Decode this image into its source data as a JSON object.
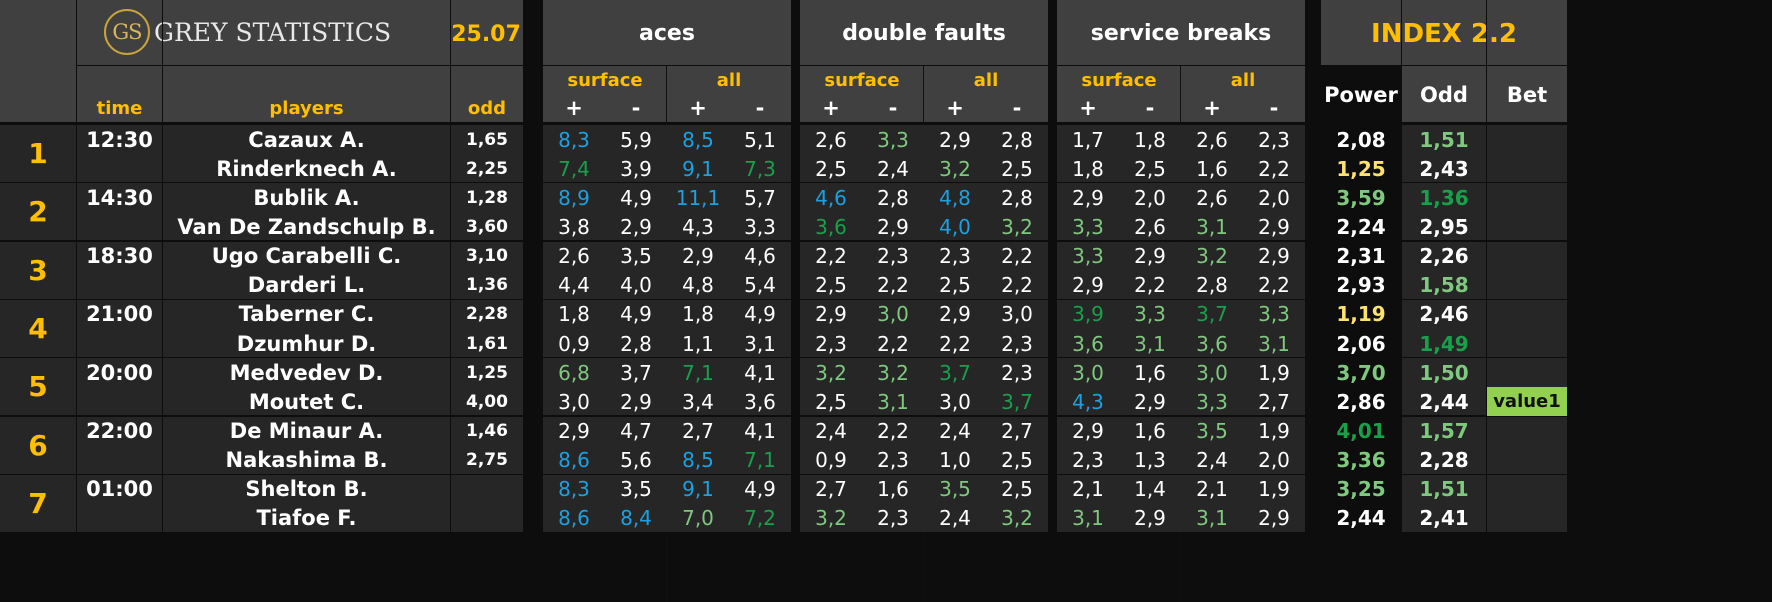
{
  "brand": {
    "logo_text": "GS",
    "name": "GREY STATISTICS",
    "date": "25.07",
    "index": "INDEX 2.2"
  },
  "groups": [
    "aces",
    "double faults",
    "service breaks"
  ],
  "sub_groups": [
    "surface",
    "all"
  ],
  "signs": [
    "+",
    "-"
  ],
  "columns": {
    "time": "time",
    "players": "players",
    "odd": "odd",
    "power": "Power",
    "odd2": "Odd",
    "bet": "Bet"
  },
  "colors": {
    "header_bg": "#404040",
    "row_bg": "#262626",
    "gold": "#ffbf00",
    "cyan": "#1ba1e2",
    "green": "#19a04b",
    "light_green": "#7fc97f",
    "value_badge": "#92d050"
  },
  "matches": [
    {
      "num": "1",
      "time": "12:30",
      "players": [
        {
          "name": "Cazaux A.",
          "odd": "1,65",
          "stats": [
            [
              "8,3",
              "cyan"
            ],
            [
              "5,9",
              ""
            ],
            [
              "8,5",
              "cyan"
            ],
            [
              "5,1",
              ""
            ],
            [
              "2,6",
              ""
            ],
            [
              "3,3",
              "lgreen"
            ],
            [
              "2,9",
              ""
            ],
            [
              "2,8",
              ""
            ],
            [
              "1,7",
              ""
            ],
            [
              "1,8",
              ""
            ],
            [
              "2,6",
              ""
            ],
            [
              "2,3",
              ""
            ]
          ],
          "power": [
            "2,08",
            ""
          ],
          "odd2": [
            "1,51",
            "lgreen"
          ],
          "bet": ""
        },
        {
          "name": "Rinderknech A.",
          "odd": "2,25",
          "stats": [
            [
              "7,4",
              "green"
            ],
            [
              "3,9",
              ""
            ],
            [
              "9,1",
              "cyan"
            ],
            [
              "7,3",
              "green"
            ],
            [
              "2,5",
              ""
            ],
            [
              "2,4",
              ""
            ],
            [
              "3,2",
              "lgreen"
            ],
            [
              "2,5",
              ""
            ],
            [
              "1,8",
              ""
            ],
            [
              "2,5",
              ""
            ],
            [
              "1,6",
              ""
            ],
            [
              "2,2",
              ""
            ]
          ],
          "power": [
            "1,25",
            "yellow"
          ],
          "odd2": [
            "2,43",
            ""
          ],
          "bet": ""
        }
      ]
    },
    {
      "num": "2",
      "time": "14:30",
      "players": [
        {
          "name": "Bublik A.",
          "odd": "1,28",
          "stats": [
            [
              "8,9",
              "cyan"
            ],
            [
              "4,9",
              ""
            ],
            [
              "11,1",
              "cyan"
            ],
            [
              "5,7",
              ""
            ],
            [
              "4,6",
              "cyan"
            ],
            [
              "2,8",
              ""
            ],
            [
              "4,8",
              "cyan"
            ],
            [
              "2,8",
              ""
            ],
            [
              "2,9",
              ""
            ],
            [
              "2,0",
              ""
            ],
            [
              "2,6",
              ""
            ],
            [
              "2,0",
              ""
            ]
          ],
          "power": [
            "3,59",
            "lgreen"
          ],
          "odd2": [
            "1,36",
            "green"
          ],
          "bet": ""
        },
        {
          "name": "Van De Zandschulp B.",
          "odd": "3,60",
          "stats": [
            [
              "3,8",
              ""
            ],
            [
              "2,9",
              ""
            ],
            [
              "4,3",
              ""
            ],
            [
              "3,3",
              ""
            ],
            [
              "3,6",
              "green"
            ],
            [
              "2,9",
              ""
            ],
            [
              "4,0",
              "cyan"
            ],
            [
              "3,2",
              "lgreen"
            ],
            [
              "3,3",
              "lgreen"
            ],
            [
              "2,6",
              ""
            ],
            [
              "3,1",
              "lgreen"
            ],
            [
              "2,9",
              ""
            ]
          ],
          "power": [
            "2,24",
            ""
          ],
          "odd2": [
            "2,95",
            ""
          ],
          "bet": ""
        }
      ]
    },
    {
      "num": "3",
      "time": "18:30",
      "players": [
        {
          "name": "Ugo Carabelli C.",
          "odd": "3,10",
          "stats": [
            [
              "2,6",
              ""
            ],
            [
              "3,5",
              ""
            ],
            [
              "2,9",
              ""
            ],
            [
              "4,6",
              ""
            ],
            [
              "2,2",
              ""
            ],
            [
              "2,3",
              ""
            ],
            [
              "2,3",
              ""
            ],
            [
              "2,2",
              ""
            ],
            [
              "3,3",
              "lgreen"
            ],
            [
              "2,9",
              ""
            ],
            [
              "3,2",
              "lgreen"
            ],
            [
              "2,9",
              ""
            ]
          ],
          "power": [
            "2,31",
            ""
          ],
          "odd2": [
            "2,26",
            ""
          ],
          "bet": ""
        },
        {
          "name": "Darderi L.",
          "odd": "1,36",
          "stats": [
            [
              "4,4",
              ""
            ],
            [
              "4,0",
              ""
            ],
            [
              "4,8",
              ""
            ],
            [
              "5,4",
              ""
            ],
            [
              "2,5",
              ""
            ],
            [
              "2,2",
              ""
            ],
            [
              "2,5",
              ""
            ],
            [
              "2,2",
              ""
            ],
            [
              "2,9",
              ""
            ],
            [
              "2,2",
              ""
            ],
            [
              "2,8",
              ""
            ],
            [
              "2,2",
              ""
            ]
          ],
          "power": [
            "2,93",
            ""
          ],
          "odd2": [
            "1,58",
            "lgreen"
          ],
          "bet": ""
        }
      ]
    },
    {
      "num": "4",
      "time": "21:00",
      "players": [
        {
          "name": "Taberner C.",
          "odd": "2,28",
          "stats": [
            [
              "1,8",
              ""
            ],
            [
              "4,9",
              ""
            ],
            [
              "1,8",
              ""
            ],
            [
              "4,9",
              ""
            ],
            [
              "2,9",
              ""
            ],
            [
              "3,0",
              "lgreen"
            ],
            [
              "2,9",
              ""
            ],
            [
              "3,0",
              ""
            ],
            [
              "3,9",
              "green"
            ],
            [
              "3,3",
              "lgreen"
            ],
            [
              "3,7",
              "green"
            ],
            [
              "3,3",
              "lgreen"
            ]
          ],
          "power": [
            "1,19",
            "yellow"
          ],
          "odd2": [
            "2,46",
            ""
          ],
          "bet": ""
        },
        {
          "name": "Dzumhur D.",
          "odd": "1,61",
          "stats": [
            [
              "0,9",
              ""
            ],
            [
              "2,8",
              ""
            ],
            [
              "1,1",
              ""
            ],
            [
              "3,1",
              ""
            ],
            [
              "2,3",
              ""
            ],
            [
              "2,2",
              ""
            ],
            [
              "2,2",
              ""
            ],
            [
              "2,3",
              ""
            ],
            [
              "3,6",
              "lgreen"
            ],
            [
              "3,1",
              "lgreen"
            ],
            [
              "3,6",
              "lgreen"
            ],
            [
              "3,1",
              "lgreen"
            ]
          ],
          "power": [
            "2,06",
            ""
          ],
          "odd2": [
            "1,49",
            "green"
          ],
          "bet": ""
        }
      ]
    },
    {
      "num": "5",
      "time": "20:00",
      "players": [
        {
          "name": "Medvedev D.",
          "odd": "1,25",
          "stats": [
            [
              "6,8",
              "lgreen"
            ],
            [
              "3,7",
              ""
            ],
            [
              "7,1",
              "green"
            ],
            [
              "4,1",
              ""
            ],
            [
              "3,2",
              "lgreen"
            ],
            [
              "3,2",
              "lgreen"
            ],
            [
              "3,7",
              "green"
            ],
            [
              "2,3",
              ""
            ],
            [
              "3,0",
              "lgreen"
            ],
            [
              "1,6",
              ""
            ],
            [
              "3,0",
              "lgreen"
            ],
            [
              "1,9",
              ""
            ]
          ],
          "power": [
            "3,70",
            "lgreen"
          ],
          "odd2": [
            "1,50",
            "lgreen"
          ],
          "bet": ""
        },
        {
          "name": "Moutet C.",
          "odd": "4,00",
          "stats": [
            [
              "3,0",
              ""
            ],
            [
              "2,9",
              ""
            ],
            [
              "3,4",
              ""
            ],
            [
              "3,6",
              ""
            ],
            [
              "2,5",
              ""
            ],
            [
              "3,1",
              "lgreen"
            ],
            [
              "3,0",
              ""
            ],
            [
              "3,7",
              "green"
            ],
            [
              "4,3",
              "cyan"
            ],
            [
              "2,9",
              ""
            ],
            [
              "3,3",
              "lgreen"
            ],
            [
              "2,7",
              ""
            ]
          ],
          "power": [
            "2,86",
            ""
          ],
          "odd2": [
            "2,44",
            ""
          ],
          "bet": "value1"
        }
      ]
    },
    {
      "num": "6",
      "time": "22:00",
      "players": [
        {
          "name": "De Minaur A.",
          "odd": "1,46",
          "stats": [
            [
              "2,9",
              ""
            ],
            [
              "4,7",
              ""
            ],
            [
              "2,7",
              ""
            ],
            [
              "4,1",
              ""
            ],
            [
              "2,4",
              ""
            ],
            [
              "2,2",
              ""
            ],
            [
              "2,4",
              ""
            ],
            [
              "2,7",
              ""
            ],
            [
              "2,9",
              ""
            ],
            [
              "1,6",
              ""
            ],
            [
              "3,5",
              "lgreen"
            ],
            [
              "1,9",
              ""
            ]
          ],
          "power": [
            "4,01",
            "green"
          ],
          "odd2": [
            "1,57",
            "lgreen"
          ],
          "bet": ""
        },
        {
          "name": "Nakashima B.",
          "odd": "2,75",
          "stats": [
            [
              "8,6",
              "cyan"
            ],
            [
              "5,6",
              ""
            ],
            [
              "8,5",
              "cyan"
            ],
            [
              "7,1",
              "green"
            ],
            [
              "0,9",
              ""
            ],
            [
              "2,3",
              ""
            ],
            [
              "1,0",
              ""
            ],
            [
              "2,5",
              ""
            ],
            [
              "2,3",
              ""
            ],
            [
              "1,3",
              ""
            ],
            [
              "2,4",
              ""
            ],
            [
              "2,0",
              ""
            ]
          ],
          "power": [
            "3,36",
            "lgreen"
          ],
          "odd2": [
            "2,28",
            ""
          ],
          "bet": ""
        }
      ]
    },
    {
      "num": "7",
      "time": "01:00",
      "players": [
        {
          "name": "Shelton B.",
          "odd": "",
          "stats": [
            [
              "8,3",
              "cyan"
            ],
            [
              "3,5",
              ""
            ],
            [
              "9,1",
              "cyan"
            ],
            [
              "4,9",
              ""
            ],
            [
              "2,7",
              ""
            ],
            [
              "1,6",
              ""
            ],
            [
              "3,5",
              "lgreen"
            ],
            [
              "2,5",
              ""
            ],
            [
              "2,1",
              ""
            ],
            [
              "1,4",
              ""
            ],
            [
              "2,1",
              ""
            ],
            [
              "1,9",
              ""
            ]
          ],
          "power": [
            "3,25",
            "lgreen"
          ],
          "odd2": [
            "1,51",
            "lgreen"
          ],
          "bet": ""
        },
        {
          "name": "Tiafoe F.",
          "odd": "",
          "stats": [
            [
              "8,6",
              "cyan"
            ],
            [
              "8,4",
              "cyan"
            ],
            [
              "7,0",
              "lgreen"
            ],
            [
              "7,2",
              "green"
            ],
            [
              "3,2",
              "lgreen"
            ],
            [
              "2,3",
              ""
            ],
            [
              "2,4",
              ""
            ],
            [
              "3,2",
              "lgreen"
            ],
            [
              "3,1",
              "lgreen"
            ],
            [
              "2,9",
              ""
            ],
            [
              "3,1",
              "lgreen"
            ],
            [
              "2,9",
              ""
            ]
          ],
          "power": [
            "2,44",
            ""
          ],
          "odd2": [
            "2,41",
            ""
          ],
          "bet": ""
        }
      ]
    }
  ]
}
